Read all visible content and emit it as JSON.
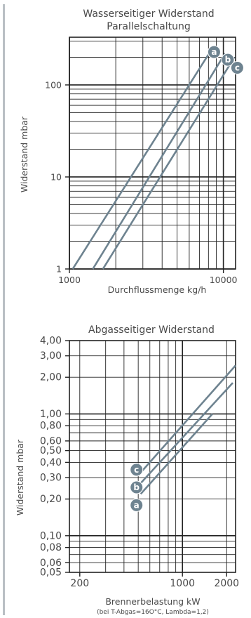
{
  "colors": {
    "grid": "#222222",
    "line": "#6e8390",
    "badge": "#6e8390",
    "text": "#4a4a4a",
    "rule": "#b9bfc4"
  },
  "chart_data": [
    {
      "type": "line",
      "title": "Wasserseitiger Widerstand",
      "subtitle": "Parallelschaltung",
      "xlabel": "Durchflussmenge kg/h",
      "ylabel": "Widerstand mbar",
      "xscale": "log",
      "yscale": "log",
      "xlim": [
        1000,
        12000
      ],
      "ylim": [
        1,
        330
      ],
      "x_ticks": [
        {
          "value": 1000,
          "label": "1000"
        },
        {
          "value": 10000,
          "label": "10000"
        }
      ],
      "y_ticks": [
        {
          "value": 1,
          "label": "1"
        },
        {
          "value": 10,
          "label": "10"
        },
        {
          "value": 100,
          "label": "100"
        }
      ],
      "grid": true,
      "series": [
        {
          "name": "a",
          "x": [
            1050,
            8350
          ],
          "y": [
            1,
            240
          ]
        },
        {
          "name": "b",
          "x": [
            1420,
            10250
          ],
          "y": [
            1,
            220
          ]
        },
        {
          "name": "c",
          "x": [
            1650,
            11800
          ],
          "y": [
            1,
            200
          ]
        }
      ]
    },
    {
      "type": "line",
      "title": "Abgasseitiger Widerstand",
      "xlabel": "Brennerbelastung kW",
      "note": "(bei T-Abgas=16O°C, Lambda=1,2)",
      "ylabel": "Widerstand mbar",
      "xscale": "log",
      "yscale": "log",
      "xlim": [
        170,
        2300
      ],
      "ylim": [
        0.05,
        4.0
      ],
      "x_ticks": [
        {
          "value": 200,
          "label": "200"
        },
        {
          "value": 1000,
          "label": "1000"
        },
        {
          "value": 2000,
          "label": "2000"
        }
      ],
      "y_ticks": [
        {
          "value": 4.0,
          "label": "4,00"
        },
        {
          "value": 3.0,
          "label": "3,00"
        },
        {
          "value": 2.0,
          "label": "2,00"
        },
        {
          "value": 1.0,
          "label": "1,00"
        },
        {
          "value": 0.8,
          "label": "0,80"
        },
        {
          "value": 0.6,
          "label": "0,60"
        },
        {
          "value": 0.5,
          "label": "0,50"
        },
        {
          "value": 0.4,
          "label": "0,40"
        },
        {
          "value": 0.3,
          "label": "0,30"
        },
        {
          "value": 0.2,
          "label": "0,20"
        },
        {
          "value": 0.1,
          "label": "0,10"
        },
        {
          "value": 0.08,
          "label": "0,08"
        },
        {
          "value": 0.06,
          "label": "0,06"
        },
        {
          "value": 0.05,
          "label": "0,05"
        }
      ],
      "grid": true,
      "series": [
        {
          "name": "a",
          "x": [
            520,
            1600
          ],
          "y": [
            0.22,
            1.0
          ]
        },
        {
          "name": "b",
          "x": [
            520,
            2200
          ],
          "y": [
            0.27,
            1.8
          ]
        },
        {
          "name": "c",
          "x": [
            520,
            2300
          ],
          "y": [
            0.33,
            2.5
          ]
        }
      ]
    }
  ]
}
